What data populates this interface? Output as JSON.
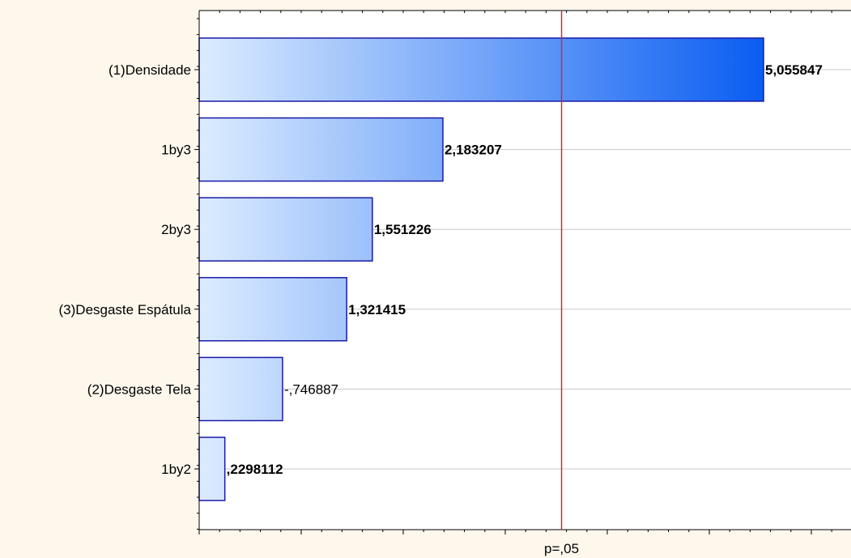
{
  "chart_data": {
    "type": "bar",
    "orientation": "horizontal",
    "categories": [
      "(1)Densidade",
      "1by3",
      "2by3",
      "(3)Desgaste Espátula",
      "(2)Desgaste Tela",
      "1by2"
    ],
    "values": [
      5.055847,
      2.183207,
      1.551226,
      1.321415,
      -0.746887,
      0.2298112
    ],
    "value_labels": [
      "5,055847",
      "2,183207",
      "1,551226",
      "1,321415",
      "-,746887",
      ",2298112"
    ],
    "xlim": [
      0,
      6
    ],
    "reference_line": {
      "label": "p=,05",
      "value": 3.25,
      "color": "#e0262b"
    },
    "colors": {
      "bar_light": "#dcecff",
      "bar_dark": "#0a5df2",
      "bar_border": "#1a1aa8",
      "grid": "#c8c8c8",
      "plot_bg": "#ffffff",
      "page_bg": "#fdf7ec"
    },
    "grid": true
  }
}
